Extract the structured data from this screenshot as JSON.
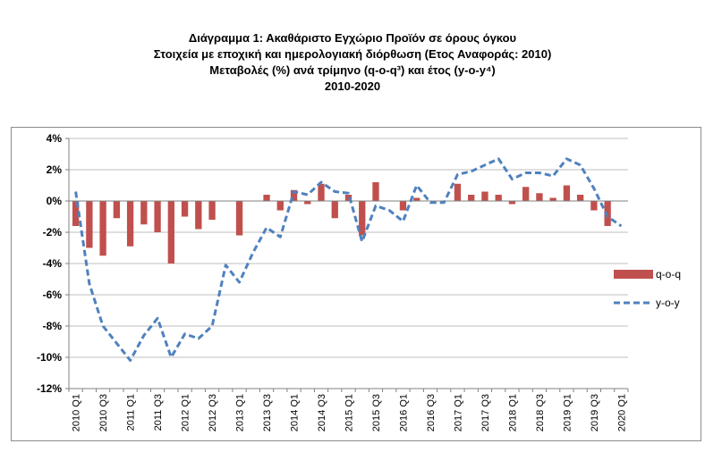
{
  "title_lines": [
    "Διάγραμμα 1: Ακαθάριστο Εγχώριο Προϊόν σε όρους όγκου",
    "Στοιχεία με εποχική και ημερολογιακή διόρθωση (Ετος Αναφοράς: 2010)",
    "Μεταβολές (%) ανά τρίμηνο (q-o-q³) και έτος (y-o-y⁴)",
    "2010-2020"
  ],
  "chart_data": {
    "type": "bar",
    "title": "Διάγραμμα 1: Ακαθάριστο Εγχώριο Προϊόν σε όρους όγκου",
    "ylim": [
      -12,
      4
    ],
    "yticks": [
      "4%",
      "2%",
      "0%",
      "-2%",
      "-4%",
      "-6%",
      "-8%",
      "-10%",
      "-12%"
    ],
    "ytick_values": [
      4,
      2,
      0,
      -2,
      -4,
      -6,
      -8,
      -10,
      -12
    ],
    "grid": true,
    "legend_position": "right",
    "categories": [
      "2010 Q1",
      "2010 Q2",
      "2010 Q3",
      "2010 Q4",
      "2011 Q1",
      "2011 Q2",
      "2011 Q3",
      "2011 Q4",
      "2012 Q1",
      "2012 Q2",
      "2012 Q3",
      "2012 Q4",
      "2013 Q1",
      "2013 Q2",
      "2013 Q3",
      "2013 Q4",
      "2014 Q1",
      "2014 Q2",
      "2014 Q3",
      "2014 Q4",
      "2015 Q1",
      "2015 Q2",
      "2015 Q3",
      "2015 Q4",
      "2016 Q1",
      "2016 Q2",
      "2016 Q3",
      "2016 Q4",
      "2017 Q1",
      "2017 Q2",
      "2017 Q3",
      "2017 Q4",
      "2018 Q1",
      "2018 Q2",
      "2018 Q3",
      "2018 Q4",
      "2019 Q1",
      "2019 Q2",
      "2019 Q3",
      "2019 Q4",
      "2020 Q1"
    ],
    "xtick_labels": [
      "2010 Q1",
      "2010 Q3",
      "2011 Q1",
      "2011 Q3",
      "2012 Q1",
      "2012 Q3",
      "2013 Q1",
      "2013 Q3",
      "2014 Q1",
      "2014 Q3",
      "2015 Q1",
      "2015 Q3",
      "2016 Q1",
      "2016 Q3",
      "2017 Q1",
      "2017 Q3",
      "2018 Q1",
      "2018 Q3",
      "2019 Q1",
      "2019 Q3",
      "2020 Q1"
    ],
    "series": [
      {
        "name": "q-o-q",
        "type": "bar",
        "color": "#c0504d",
        "values": [
          -1.6,
          -3.0,
          -3.5,
          -1.1,
          -2.9,
          -1.5,
          -2.0,
          -4.0,
          -1.0,
          -1.8,
          -1.2,
          0.0,
          -2.2,
          0.0,
          0.4,
          -0.6,
          0.7,
          -0.2,
          1.1,
          -1.1,
          0.4,
          -2.2,
          1.2,
          0.0,
          -0.6,
          0.2,
          0.0,
          0.0,
          1.1,
          0.4,
          0.6,
          0.4,
          -0.2,
          0.9,
          0.5,
          0.2,
          1.0,
          0.4,
          -0.6,
          -1.6,
          0.0
        ]
      },
      {
        "name": "y-o-y",
        "type": "line",
        "style": "dashed",
        "color": "#4f81bd",
        "values": [
          0.6,
          -5.3,
          -8.0,
          -9.1,
          -10.2,
          -8.6,
          -7.5,
          -10.0,
          -8.5,
          -8.8,
          -8.0,
          -4.1,
          -5.2,
          -3.3,
          -1.7,
          -2.3,
          0.6,
          0.4,
          1.2,
          0.6,
          0.5,
          -2.6,
          -0.3,
          -0.6,
          -1.3,
          1.0,
          -0.1,
          -0.1,
          1.7,
          1.9,
          2.3,
          2.7,
          1.4,
          1.8,
          1.8,
          1.6,
          2.7,
          2.3,
          0.8,
          -1.0,
          -1.6
        ]
      }
    ]
  }
}
